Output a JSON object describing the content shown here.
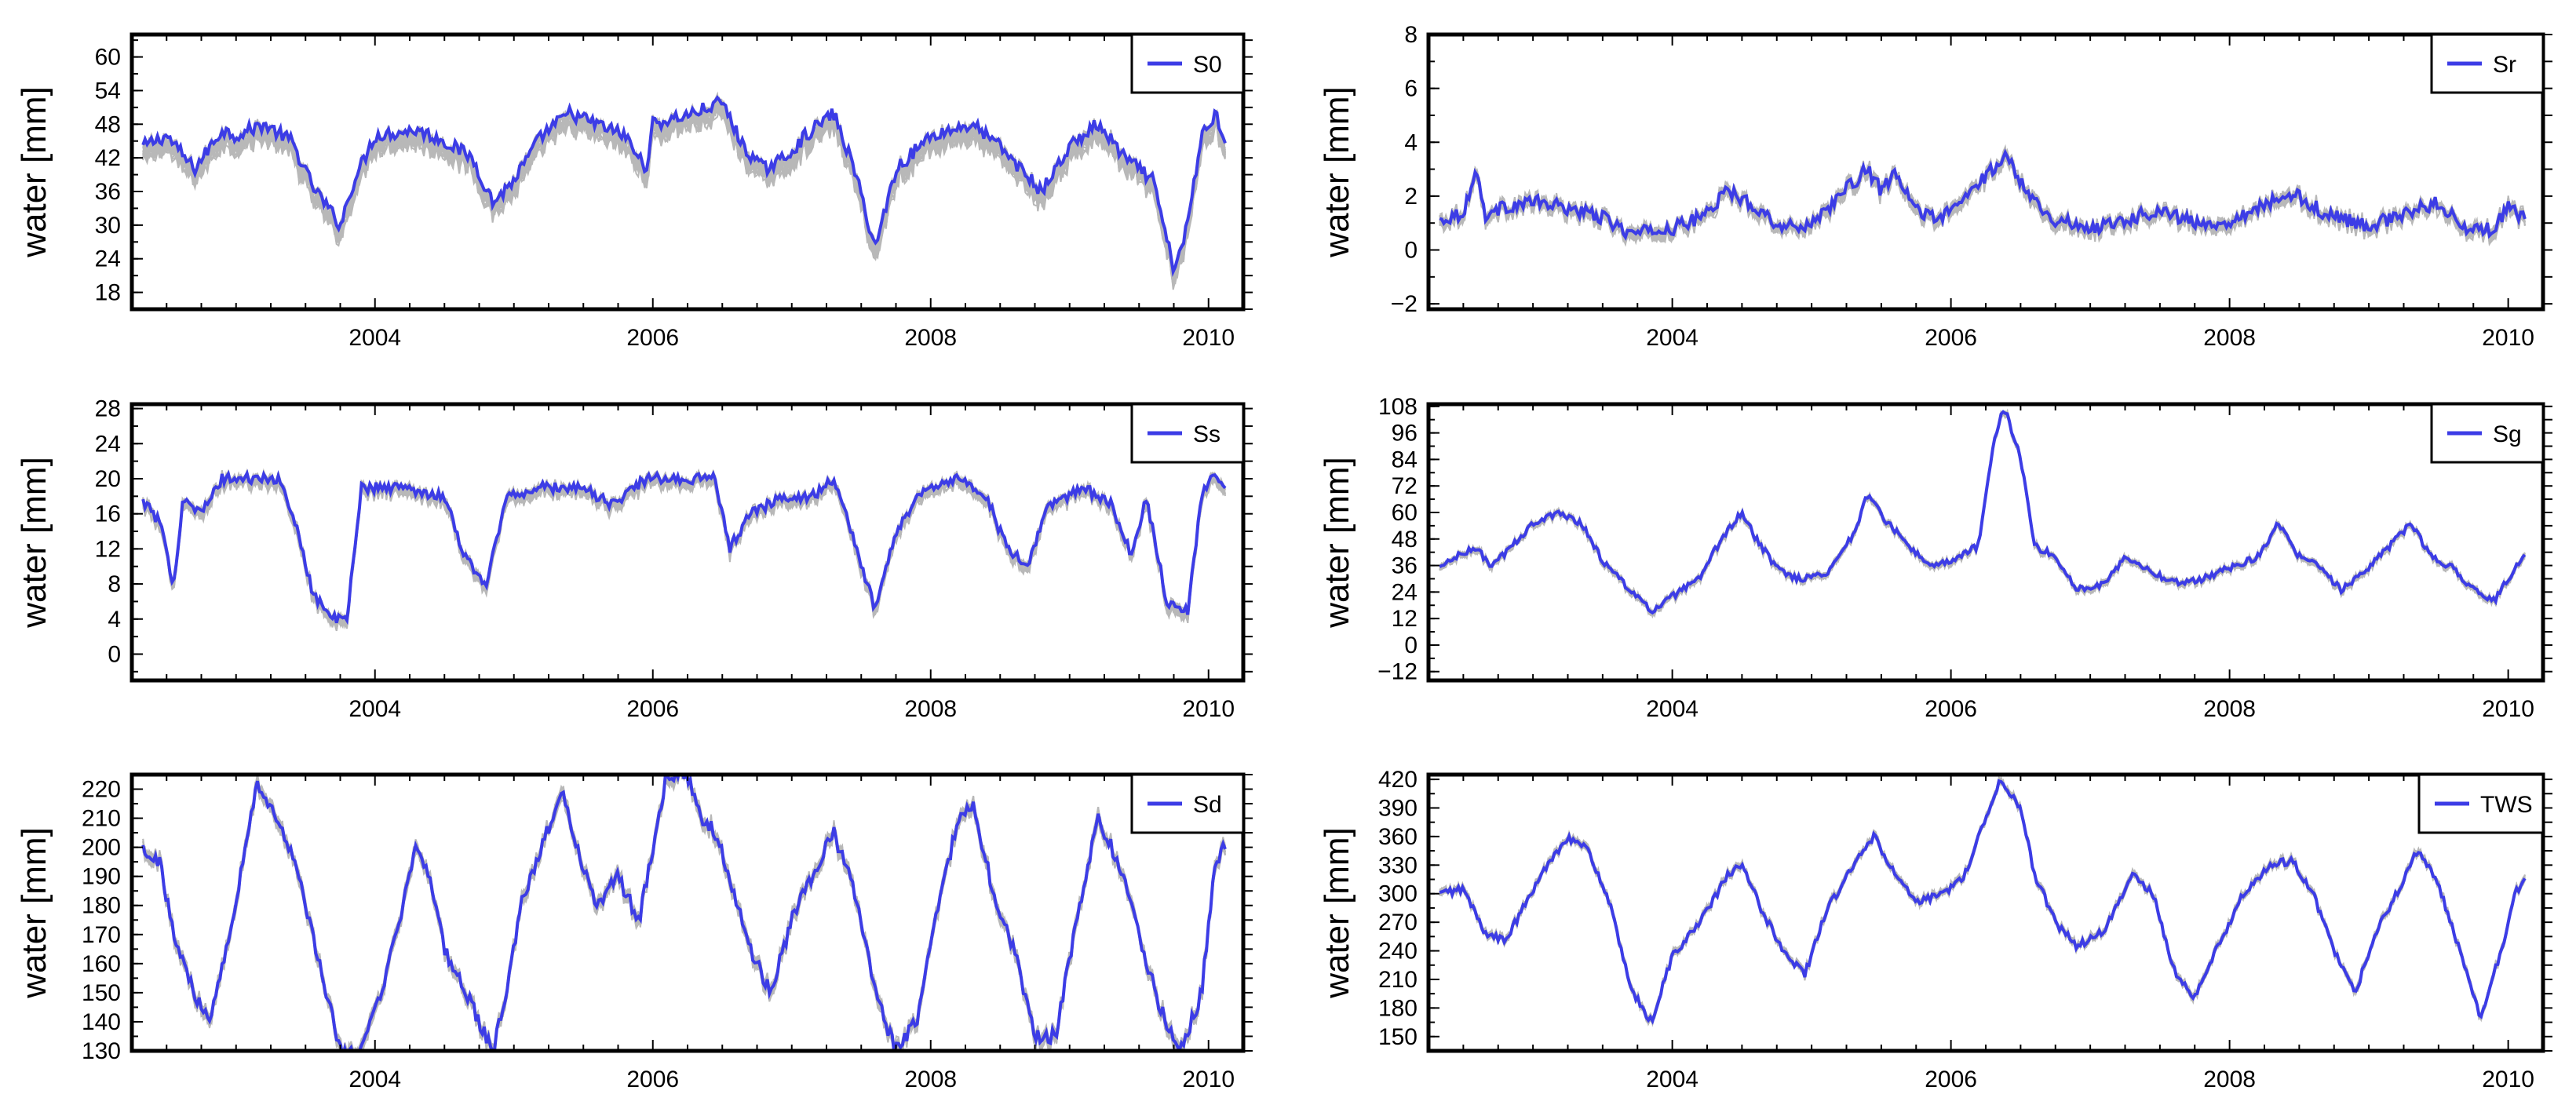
{
  "colors": {
    "background": "#ffffff",
    "axes": "#000000",
    "ensemble_gray": "#b8b8b8",
    "mean_blue": "#3c3ce6"
  },
  "chart_data": [
    {
      "type": "line",
      "ylabel": "water [mm]",
      "legend": "S0",
      "legend_position": "top-right",
      "grid": false,
      "xlim": [
        2002.25,
        2010.25
      ],
      "xticks": [
        2004,
        2006,
        2008,
        2010
      ],
      "ylim": [
        15,
        64
      ],
      "yticks": [
        18,
        24,
        30,
        36,
        42,
        48,
        54,
        60
      ],
      "ensemble_members": 18,
      "ensemble_spread": 5,
      "noise": 1.2,
      "series_name": "S0",
      "series": [
        [
          2002.33,
          44
        ],
        [
          2002.5,
          46
        ],
        [
          2002.7,
          40
        ],
        [
          2002.9,
          47
        ],
        [
          2003.0,
          46
        ],
        [
          2003.2,
          48
        ],
        [
          2003.4,
          45
        ],
        [
          2003.55,
          37
        ],
        [
          2003.75,
          30
        ],
        [
          2003.85,
          38
        ],
        [
          2004.0,
          46
        ],
        [
          2004.3,
          47
        ],
        [
          2004.5,
          45
        ],
        [
          2004.7,
          42
        ],
        [
          2004.85,
          34
        ],
        [
          2005.0,
          38
        ],
        [
          2005.2,
          46
        ],
        [
          2005.4,
          50
        ],
        [
          2005.6,
          48
        ],
        [
          2005.8,
          46
        ],
        [
          2005.95,
          40
        ],
        [
          2006.0,
          48
        ],
        [
          2006.3,
          50
        ],
        [
          2006.5,
          52
        ],
        [
          2006.65,
          44
        ],
        [
          2006.8,
          40
        ],
        [
          2006.95,
          42
        ],
        [
          2007.1,
          46
        ],
        [
          2007.3,
          50
        ],
        [
          2007.45,
          40
        ],
        [
          2007.6,
          26
        ],
        [
          2007.75,
          40
        ],
        [
          2008.0,
          46
        ],
        [
          2008.3,
          48
        ],
        [
          2008.5,
          44
        ],
        [
          2008.65,
          40
        ],
        [
          2008.8,
          36
        ],
        [
          2009.0,
          44
        ],
        [
          2009.2,
          48
        ],
        [
          2009.4,
          42
        ],
        [
          2009.6,
          38
        ],
        [
          2009.75,
          22
        ],
        [
          2009.85,
          30
        ],
        [
          2009.95,
          46
        ],
        [
          2010.05,
          50
        ],
        [
          2010.12,
          45
        ]
      ]
    },
    {
      "type": "line",
      "ylabel": "water [mm]",
      "legend": "Sr",
      "legend_position": "top-right",
      "grid": false,
      "xlim": [
        2002.25,
        2010.25
      ],
      "xticks": [
        2004,
        2006,
        2008,
        2010
      ],
      "ylim": [
        -2.2,
        8
      ],
      "yticks": [
        -2,
        0,
        2,
        4,
        6,
        8
      ],
      "ensemble_members": 18,
      "ensemble_spread": 0.25,
      "noise": 0.25,
      "series_name": "Sr",
      "series": [
        [
          2002.33,
          1.1
        ],
        [
          2002.5,
          1.4
        ],
        [
          2002.6,
          3.0
        ],
        [
          2002.65,
          1.3
        ],
        [
          2002.8,
          1.6
        ],
        [
          2003.0,
          1.8
        ],
        [
          2003.3,
          1.5
        ],
        [
          2003.5,
          1.2
        ],
        [
          2003.7,
          0.6
        ],
        [
          2004.0,
          0.8
        ],
        [
          2004.2,
          1.2
        ],
        [
          2004.4,
          2.2
        ],
        [
          2004.6,
          1.6
        ],
        [
          2004.8,
          0.8
        ],
        [
          2005.0,
          1.0
        ],
        [
          2005.2,
          2.0
        ],
        [
          2005.4,
          3.0
        ],
        [
          2005.5,
          2.2
        ],
        [
          2005.6,
          2.8
        ],
        [
          2005.75,
          1.5
        ],
        [
          2005.9,
          1.2
        ],
        [
          2006.0,
          1.4
        ],
        [
          2006.2,
          2.5
        ],
        [
          2006.4,
          3.5
        ],
        [
          2006.5,
          2.6
        ],
        [
          2006.7,
          1.2
        ],
        [
          2007.0,
          0.8
        ],
        [
          2007.3,
          1.2
        ],
        [
          2007.5,
          1.5
        ],
        [
          2007.8,
          0.9
        ],
        [
          2008.0,
          1.1
        ],
        [
          2008.3,
          1.8
        ],
        [
          2008.5,
          2.0
        ],
        [
          2008.7,
          1.3
        ],
        [
          2009.0,
          0.9
        ],
        [
          2009.3,
          1.4
        ],
        [
          2009.5,
          1.8
        ],
        [
          2009.7,
          0.7
        ],
        [
          2009.9,
          0.8
        ],
        [
          2010.0,
          1.6
        ],
        [
          2010.12,
          1.1
        ]
      ]
    },
    {
      "type": "line",
      "ylabel": "water [mm]",
      "legend": "Ss",
      "legend_position": "top-right",
      "grid": false,
      "xlim": [
        2002.25,
        2010.25
      ],
      "xticks": [
        2004,
        2006,
        2008,
        2010
      ],
      "ylim": [
        -3,
        28.5
      ],
      "yticks": [
        0,
        4,
        8,
        12,
        16,
        20,
        24,
        28
      ],
      "ensemble_members": 18,
      "ensemble_spread": 2.2,
      "noise": 0.6,
      "series_name": "Ss",
      "series": [
        [
          2002.33,
          17.5
        ],
        [
          2002.45,
          15
        ],
        [
          2002.55,
          8
        ],
        [
          2002.62,
          18
        ],
        [
          2002.75,
          16
        ],
        [
          2002.9,
          20
        ],
        [
          2003.1,
          20
        ],
        [
          2003.3,
          20
        ],
        [
          2003.45,
          14
        ],
        [
          2003.55,
          7
        ],
        [
          2003.7,
          4
        ],
        [
          2003.8,
          4
        ],
        [
          2003.9,
          19
        ],
        [
          2004.2,
          19
        ],
        [
          2004.5,
          18
        ],
        [
          2004.65,
          11
        ],
        [
          2004.8,
          8
        ],
        [
          2004.95,
          18
        ],
        [
          2005.2,
          19
        ],
        [
          2005.5,
          19
        ],
        [
          2005.7,
          17
        ],
        [
          2005.95,
          20
        ],
        [
          2006.2,
          20
        ],
        [
          2006.45,
          20
        ],
        [
          2006.55,
          12
        ],
        [
          2006.7,
          16
        ],
        [
          2006.95,
          18
        ],
        [
          2007.15,
          18
        ],
        [
          2007.3,
          20
        ],
        [
          2007.45,
          13
        ],
        [
          2007.6,
          5
        ],
        [
          2007.75,
          14
        ],
        [
          2007.95,
          19
        ],
        [
          2008.2,
          20
        ],
        [
          2008.4,
          18
        ],
        [
          2008.55,
          12
        ],
        [
          2008.7,
          10
        ],
        [
          2008.85,
          17
        ],
        [
          2009.1,
          19
        ],
        [
          2009.3,
          17
        ],
        [
          2009.45,
          11
        ],
        [
          2009.55,
          18
        ],
        [
          2009.7,
          6
        ],
        [
          2009.85,
          5
        ],
        [
          2009.95,
          18
        ],
        [
          2010.05,
          21
        ],
        [
          2010.12,
          18.5
        ]
      ]
    },
    {
      "type": "line",
      "ylabel": "water [mm]",
      "legend": "Sg",
      "legend_position": "top-right",
      "grid": false,
      "xlim": [
        2002.25,
        2010.25
      ],
      "xticks": [
        2004,
        2006,
        2008,
        2010
      ],
      "ylim": [
        -16,
        109
      ],
      "yticks": [
        -12,
        0,
        12,
        24,
        36,
        48,
        60,
        72,
        84,
        96,
        108
      ],
      "ensemble_members": 18,
      "ensemble_spread": 4,
      "noise": 1.5,
      "series_name": "Sg",
      "series": [
        [
          2002.33,
          35
        ],
        [
          2002.45,
          40
        ],
        [
          2002.6,
          44
        ],
        [
          2002.7,
          35
        ],
        [
          2002.85,
          45
        ],
        [
          2003.0,
          55
        ],
        [
          2003.2,
          60
        ],
        [
          2003.35,
          55
        ],
        [
          2003.5,
          38
        ],
        [
          2003.7,
          25
        ],
        [
          2003.85,
          15
        ],
        [
          2004.0,
          22
        ],
        [
          2004.2,
          30
        ],
        [
          2004.35,
          48
        ],
        [
          2004.5,
          60
        ],
        [
          2004.6,
          48
        ],
        [
          2004.75,
          35
        ],
        [
          2004.9,
          30
        ],
        [
          2005.1,
          32
        ],
        [
          2005.3,
          50
        ],
        [
          2005.4,
          68
        ],
        [
          2005.55,
          55
        ],
        [
          2005.7,
          45
        ],
        [
          2005.85,
          35
        ],
        [
          2006.0,
          38
        ],
        [
          2006.2,
          45
        ],
        [
          2006.3,
          90
        ],
        [
          2006.38,
          108
        ],
        [
          2006.5,
          85
        ],
        [
          2006.6,
          45
        ],
        [
          2006.75,
          40
        ],
        [
          2006.9,
          25
        ],
        [
          2007.1,
          28
        ],
        [
          2007.25,
          40
        ],
        [
          2007.4,
          35
        ],
        [
          2007.6,
          28
        ],
        [
          2007.8,
          30
        ],
        [
          2008.0,
          35
        ],
        [
          2008.2,
          40
        ],
        [
          2008.35,
          55
        ],
        [
          2008.5,
          40
        ],
        [
          2008.65,
          35
        ],
        [
          2008.8,
          25
        ],
        [
          2009.0,
          35
        ],
        [
          2009.15,
          45
        ],
        [
          2009.3,
          55
        ],
        [
          2009.45,
          40
        ],
        [
          2009.6,
          35
        ],
        [
          2009.75,
          25
        ],
        [
          2009.9,
          20
        ],
        [
          2010.0,
          30
        ],
        [
          2010.12,
          42
        ]
      ]
    },
    {
      "type": "line",
      "ylabel": "water [mm]",
      "legend": "Sd",
      "legend_position": "top-right",
      "grid": false,
      "xlim": [
        2002.25,
        2010.25
      ],
      "xticks": [
        2004,
        2006,
        2008,
        2010
      ],
      "ylim": [
        130,
        225
      ],
      "yticks": [
        130,
        140,
        150,
        160,
        170,
        180,
        190,
        200,
        210,
        220
      ],
      "ensemble_members": 18,
      "ensemble_spread": 9,
      "noise": 2.5,
      "series_name": "Sd",
      "series": [
        [
          2002.33,
          200
        ],
        [
          2002.45,
          195
        ],
        [
          2002.55,
          170
        ],
        [
          2002.7,
          150
        ],
        [
          2002.8,
          140
        ],
        [
          2002.95,
          170
        ],
        [
          2003.05,
          195
        ],
        [
          2003.15,
          222
        ],
        [
          2003.3,
          210
        ],
        [
          2003.45,
          190
        ],
        [
          2003.6,
          160
        ],
        [
          2003.75,
          130
        ],
        [
          2003.9,
          130
        ],
        [
          2004.05,
          150
        ],
        [
          2004.2,
          180
        ],
        [
          2004.3,
          200
        ],
        [
          2004.4,
          190
        ],
        [
          2004.5,
          165
        ],
        [
          2004.6,
          155
        ],
        [
          2004.75,
          140
        ],
        [
          2004.85,
          130
        ],
        [
          2004.95,
          150
        ],
        [
          2005.05,
          180
        ],
        [
          2005.2,
          200
        ],
        [
          2005.35,
          220
        ],
        [
          2005.45,
          200
        ],
        [
          2005.6,
          180
        ],
        [
          2005.75,
          190
        ],
        [
          2005.9,
          175
        ],
        [
          2006.0,
          200
        ],
        [
          2006.1,
          225
        ],
        [
          2006.25,
          225
        ],
        [
          2006.35,
          210
        ],
        [
          2006.45,
          205
        ],
        [
          2006.55,
          190
        ],
        [
          2006.7,
          165
        ],
        [
          2006.85,
          150
        ],
        [
          2007.0,
          175
        ],
        [
          2007.15,
          190
        ],
        [
          2007.3,
          205
        ],
        [
          2007.45,
          185
        ],
        [
          2007.6,
          150
        ],
        [
          2007.75,
          130
        ],
        [
          2007.9,
          140
        ],
        [
          2008.05,
          180
        ],
        [
          2008.2,
          210
        ],
        [
          2008.3,
          215
        ],
        [
          2008.45,
          185
        ],
        [
          2008.6,
          165
        ],
        [
          2008.75,
          135
        ],
        [
          2008.9,
          135
        ],
        [
          2009.05,
          175
        ],
        [
          2009.2,
          210
        ],
        [
          2009.35,
          195
        ],
        [
          2009.5,
          170
        ],
        [
          2009.65,
          145
        ],
        [
          2009.8,
          130
        ],
        [
          2009.95,
          150
        ],
        [
          2010.05,
          195
        ],
        [
          2010.12,
          200
        ]
      ]
    },
    {
      "type": "line",
      "ylabel": "water [mm]",
      "legend": "TWS",
      "legend_position": "top-right",
      "grid": false,
      "xlim": [
        2002.25,
        2010.25
      ],
      "xticks": [
        2004,
        2006,
        2008,
        2010
      ],
      "ylim": [
        135,
        425
      ],
      "yticks": [
        150,
        180,
        210,
        240,
        270,
        300,
        330,
        360,
        390,
        420
      ],
      "ensemble_members": 18,
      "ensemble_spread": 7,
      "noise": 4,
      "series_name": "TWS",
      "series": [
        [
          2002.33,
          300
        ],
        [
          2002.5,
          305
        ],
        [
          2002.65,
          260
        ],
        [
          2002.8,
          250
        ],
        [
          2002.95,
          290
        ],
        [
          2003.1,
          330
        ],
        [
          2003.25,
          360
        ],
        [
          2003.4,
          345
        ],
        [
          2003.55,
          290
        ],
        [
          2003.7,
          200
        ],
        [
          2003.85,
          165
        ],
        [
          2004.0,
          235
        ],
        [
          2004.2,
          270
        ],
        [
          2004.4,
          320
        ],
        [
          2004.5,
          330
        ],
        [
          2004.65,
          280
        ],
        [
          2004.8,
          240
        ],
        [
          2004.95,
          215
        ],
        [
          2005.1,
          280
        ],
        [
          2005.3,
          330
        ],
        [
          2005.45,
          360
        ],
        [
          2005.6,
          320
        ],
        [
          2005.75,
          290
        ],
        [
          2005.95,
          300
        ],
        [
          2006.1,
          320
        ],
        [
          2006.25,
          380
        ],
        [
          2006.35,
          420
        ],
        [
          2006.5,
          390
        ],
        [
          2006.6,
          320
        ],
        [
          2006.75,
          270
        ],
        [
          2006.9,
          245
        ],
        [
          2007.1,
          260
        ],
        [
          2007.3,
          320
        ],
        [
          2007.45,
          300
        ],
        [
          2007.6,
          220
        ],
        [
          2007.75,
          190
        ],
        [
          2007.9,
          240
        ],
        [
          2008.1,
          300
        ],
        [
          2008.3,
          330
        ],
        [
          2008.45,
          335
        ],
        [
          2008.6,
          300
        ],
        [
          2008.75,
          240
        ],
        [
          2008.9,
          195
        ],
        [
          2009.05,
          260
        ],
        [
          2009.2,
          300
        ],
        [
          2009.35,
          345
        ],
        [
          2009.5,
          310
        ],
        [
          2009.65,
          240
        ],
        [
          2009.8,
          170
        ],
        [
          2009.95,
          240
        ],
        [
          2010.05,
          300
        ],
        [
          2010.12,
          315
        ]
      ]
    }
  ]
}
